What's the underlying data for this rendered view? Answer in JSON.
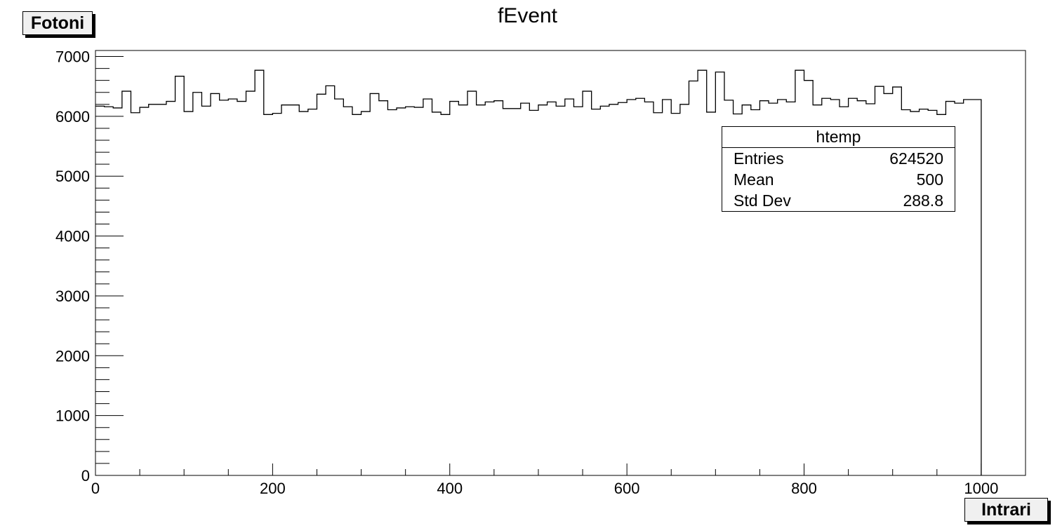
{
  "chart_data": {
    "type": "bar",
    "title": "fEvent",
    "xlabel": "Intrari",
    "ylabel": "Fotoni",
    "xlim": [
      0,
      1050
    ],
    "ylim": [
      0,
      7100
    ],
    "x_ticks": [
      0,
      200,
      400,
      600,
      800,
      1000
    ],
    "y_ticks": [
      0,
      1000,
      2000,
      3000,
      4000,
      5000,
      6000,
      7000
    ],
    "x_tick_labels": [
      "0",
      "200",
      "400",
      "600",
      "800",
      "1000"
    ],
    "y_tick_labels": [
      "0",
      "1000",
      "2000",
      "3000",
      "4000",
      "5000",
      "6000",
      "7000"
    ],
    "grid": false,
    "legend_position": "top-right",
    "bin_width": 10,
    "bin_edges": [
      0,
      1000
    ],
    "values": [
      6170,
      6160,
      6140,
      6420,
      6060,
      6150,
      6200,
      6200,
      6250,
      6670,
      6080,
      6400,
      6170,
      6380,
      6270,
      6290,
      6250,
      6420,
      6770,
      6030,
      6050,
      6190,
      6190,
      6080,
      6120,
      6370,
      6510,
      6290,
      6160,
      6030,
      6080,
      6380,
      6260,
      6110,
      6140,
      6160,
      6150,
      6290,
      6070,
      6030,
      6250,
      6190,
      6420,
      6190,
      6240,
      6260,
      6130,
      6130,
      6220,
      6100,
      6190,
      6240,
      6170,
      6290,
      6160,
      6420,
      6120,
      6170,
      6200,
      6230,
      6280,
      6300,
      6240,
      6060,
      6280,
      6050,
      6200,
      6590,
      6770,
      6070,
      6740,
      6270,
      6040,
      6190,
      6110,
      6260,
      6220,
      6280,
      6240,
      6770,
      6600,
      6190,
      6300,
      6280,
      6160,
      6300,
      6260,
      6210,
      6500,
      6380,
      6490,
      6110,
      6080,
      6120,
      6100,
      6030,
      6250,
      6220,
      6280,
      6280
    ],
    "stats": {
      "title": "htemp",
      "rows": [
        {
          "label": "Entries",
          "value": "624520"
        },
        {
          "label": "Mean",
          "value": "500"
        },
        {
          "label": "Std Dev",
          "value": "288.8"
        }
      ]
    },
    "line_color": "#000000",
    "background_color": "#ffffff",
    "label_box_color": "#f0f0f0"
  }
}
